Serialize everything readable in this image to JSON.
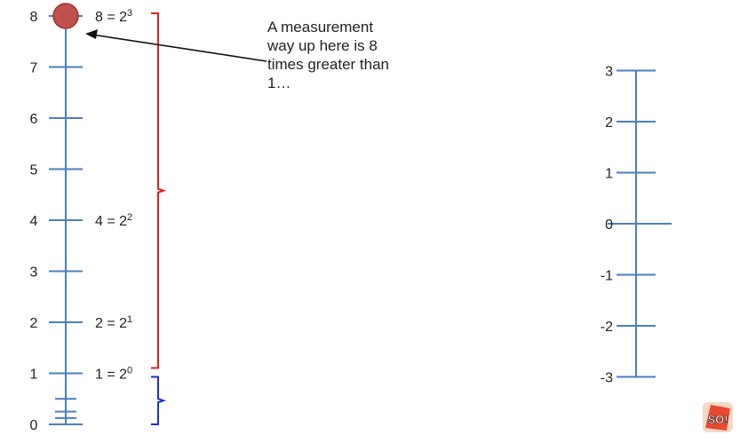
{
  "left_scale": {
    "ticks": [
      0,
      1,
      2,
      3,
      4,
      5,
      6,
      7,
      8
    ],
    "tick_labels": [
      "0",
      "1",
      "2",
      "3",
      "4",
      "5",
      "6",
      "7",
      "8"
    ],
    "powers": [
      {
        "value": 8,
        "base": "8 = 2",
        "exp": "3"
      },
      {
        "value": 4,
        "base": "4 = 2",
        "exp": "2"
      },
      {
        "value": 2,
        "base": "2 = 2",
        "exp": "1"
      },
      {
        "value": 1,
        "base": "1 = 2",
        "exp": "0"
      }
    ],
    "marker_value": 8,
    "colors": {
      "axis": "#4a7fc1",
      "marker": "#c0504d",
      "marker_edge": "#9b3431",
      "red_brace": "#e0201c",
      "blue_brace": "#1f2fd6"
    }
  },
  "right_scale": {
    "ticks": [
      -3,
      -2,
      -1,
      0,
      1,
      2,
      3
    ],
    "tick_labels": [
      "-3",
      "-2",
      "-1",
      "0",
      "1",
      "2",
      "3"
    ]
  },
  "callout": {
    "lines": [
      "A measurement",
      "way up here is 8",
      "times greater than",
      "1…"
    ]
  },
  "logo": {
    "text": "SO!"
  }
}
